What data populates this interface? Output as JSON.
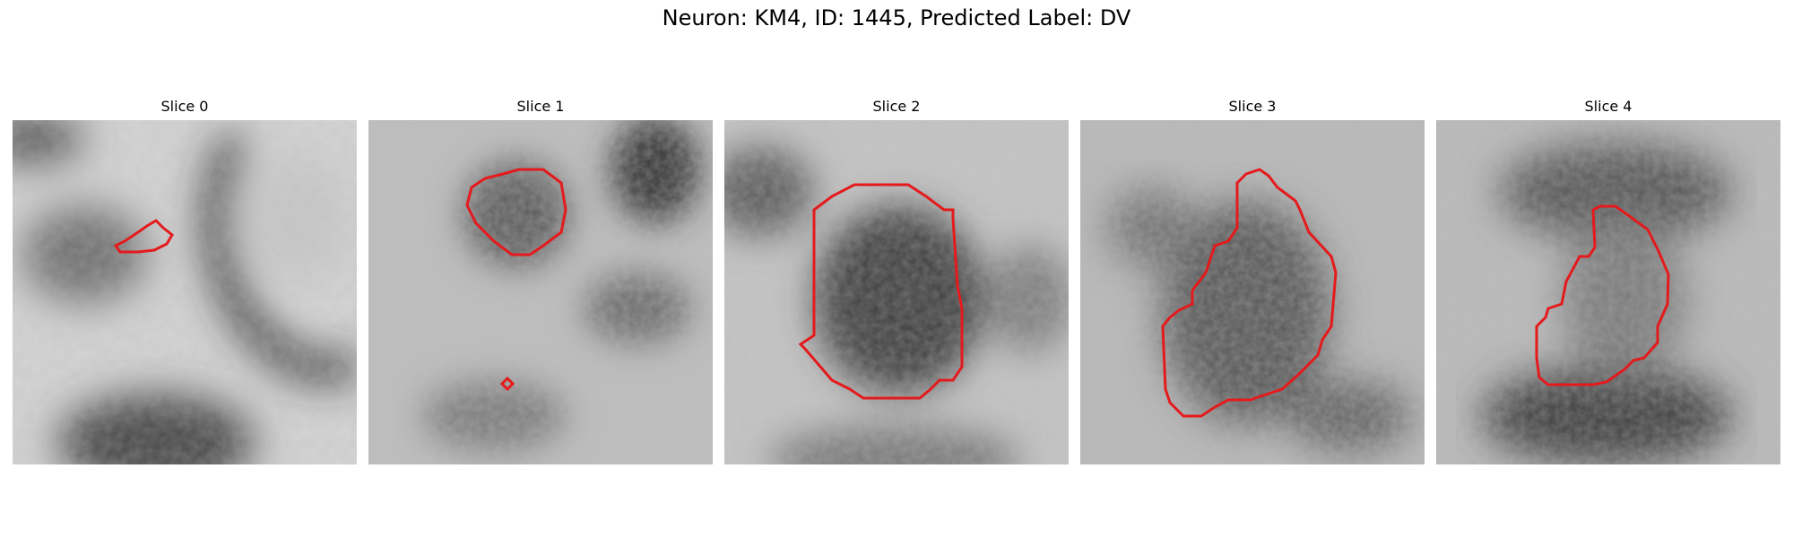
{
  "figure": {
    "title": "Neuron: KM4, ID: 1445, Predicted Label: DV",
    "contour_color": "#e41a1c",
    "panels": [
      {
        "title": "Slice 0",
        "image": "grayscale-microscopy-slice",
        "overlay": "red-outline-contour"
      },
      {
        "title": "Slice 1",
        "image": "grayscale-microscopy-slice",
        "overlay": "red-outline-contour"
      },
      {
        "title": "Slice 2",
        "image": "grayscale-microscopy-slice",
        "overlay": "red-outline-contour"
      },
      {
        "title": "Slice 3",
        "image": "grayscale-microscopy-slice",
        "overlay": "red-outline-contour"
      },
      {
        "title": "Slice 4",
        "image": "grayscale-microscopy-slice",
        "overlay": "red-outline-contour"
      }
    ]
  }
}
